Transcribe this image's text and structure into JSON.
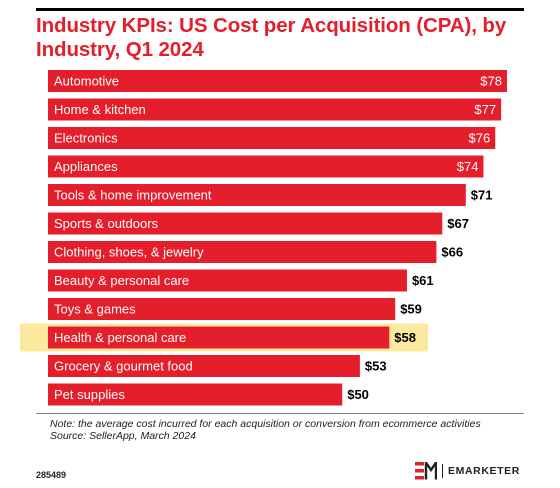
{
  "title": "Industry KPIs: US Cost per Acquisition (CPA), by Industry, Q1 2024",
  "colors": {
    "bar": "#e41e2b",
    "highlight": "#fbe9a0",
    "title": "#e41e2b"
  },
  "chart_data": {
    "type": "bar",
    "orientation": "horizontal",
    "categories": [
      "Automotive",
      "Home & kitchen",
      "Electronics",
      "Appliances",
      "Tools & home improvement",
      "Sports & outdoors",
      "Clothing, shoes, & jewelry",
      "Beauty & personal care",
      "Toys & games",
      "Health & personal care",
      "Grocery & gourmet food",
      "Pet supplies"
    ],
    "values": [
      78,
      77,
      76,
      74,
      71,
      67,
      66,
      61,
      59,
      58,
      53,
      50
    ],
    "value_labels": [
      "$78",
      "$77",
      "$76",
      "$74",
      "$71",
      "$67",
      "$66",
      "$61",
      "$59",
      "$58",
      "$53",
      "$50"
    ],
    "highlighted_category": "Health & personal care",
    "xlim": [
      0,
      78
    ]
  },
  "footer": {
    "note": "Note: the average cost incurred for each acquisition or conversion from ecommerce activities",
    "source": "Source: SellerApp, March 2024",
    "chart_id": "285489",
    "brand": "EMARKETER"
  }
}
